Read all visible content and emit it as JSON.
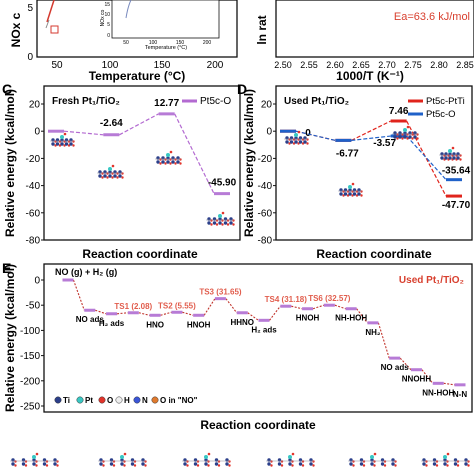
{
  "colors": {
    "dash_purple": "#b36ad1",
    "level_purple": "#b77bd6",
    "red": "#e0241c",
    "blue": "#1f61c9",
    "title_red": "#d8402f",
    "ts_label": "#e15d4d",
    "dark_red_dash": "#c1342c",
    "atom_ti": "#2b3f8a",
    "atom_pt": "#39c8c4",
    "atom_o": "#e2342b",
    "atom_h": "#eeeeee",
    "atom_n": "#3a55d8",
    "atom_no": "#e07a2e"
  },
  "panel_a": {
    "ylabel": "NOx c",
    "xlabel": "Temperature (°C)",
    "x_ticks": [
      "50",
      "100",
      "150",
      "200"
    ],
    "y_ticks": [
      "5",
      "0"
    ],
    "inset_ylabel": "NOx co",
    "inset_xlabel": "Temperature (°C)",
    "inset_x_ticks": [
      "50",
      "100",
      "150",
      "200"
    ],
    "inset_y_ticks": [
      "15",
      "10",
      "5",
      "0"
    ]
  },
  "panel_b": {
    "ylabel": "ln rat",
    "xlabel": "1000/T (K⁻¹)",
    "x_ticks": [
      "2.50",
      "2.55",
      "2.60",
      "2.65",
      "2.70",
      "2.75",
      "2.80",
      "2.85"
    ],
    "annotation": "Ea=63.6 kJ/mol"
  },
  "chart_data": [
    {
      "panel": "C",
      "type": "line",
      "title": "Fresh Pt₁/TiO₂",
      "xlabel": "Reaction coordinate",
      "ylabel": "Relative energy (kcal/mol)",
      "ylim": [
        -80,
        20
      ],
      "y_ticks": [
        "20",
        "0",
        "-20",
        "-40",
        "-60",
        "-80"
      ],
      "legend": "top-right",
      "series": [
        {
          "name": "Pt5c-O",
          "values": [
            0,
            -2.64,
            12.77,
            -45.9
          ],
          "labels": [
            "",
            "-2.64",
            "12.77",
            "-45.90"
          ]
        }
      ]
    },
    {
      "panel": "D",
      "type": "line",
      "title": "Used Pt₁/TiO₂",
      "xlabel": "Reaction coordinate",
      "ylabel": "Relative energy (kcal/mol)",
      "ylim": [
        -80,
        20
      ],
      "y_ticks": [
        "20",
        "0",
        "-20",
        "-40",
        "-60",
        "-80"
      ],
      "legend": "top-right",
      "series": [
        {
          "name": "Pt5c-PtTi",
          "values": [
            0,
            -6.77,
            7.46,
            -47.7
          ],
          "labels": [
            "0",
            "",
            "7.46",
            "-47.70"
          ]
        },
        {
          "name": "Pt5c-O",
          "values": [
            0,
            -6.77,
            -3.57,
            -35.64
          ],
          "labels": [
            "",
            "-6.77",
            "-3.57",
            "-35.64"
          ]
        }
      ]
    },
    {
      "panel": "E",
      "type": "line",
      "title": "Used Pt₁/TiO₂",
      "start_label": "NO (g) + H₂ (g)",
      "xlabel": "Reaction coordinate",
      "ylabel": "Relative energy (kcal/mol)",
      "ylim": [
        -250,
        0
      ],
      "y_ticks": [
        "0",
        "-50",
        "-100",
        "-150",
        "-200",
        "-250"
      ],
      "steps": [
        {
          "label": "",
          "value": 0
        },
        {
          "label": "NO ads",
          "value": -60
        },
        {
          "label": "H₂ ads",
          "value": -67
        },
        {
          "label": "TS1 (2.08)",
          "value": -65
        },
        {
          "label": "HNO",
          "value": -70
        },
        {
          "label": "TS2 (5.55)",
          "value": -64
        },
        {
          "label": "HNOH",
          "value": -70
        },
        {
          "label": "TS3 (31.65)",
          "value": -37
        },
        {
          "label": "HHNO",
          "value": -65
        },
        {
          "label": "H₂ ads",
          "value": -80
        },
        {
          "label": "TS4 (31.18)",
          "value": -52
        },
        {
          "label": "HNOH",
          "value": -57
        },
        {
          "label": "TS6 (32.57)",
          "value": -50
        },
        {
          "label": "NH-HOH",
          "value": -57
        },
        {
          "label": "NH₂",
          "value": -85
        },
        {
          "label": "NO ads",
          "value": -155
        },
        {
          "label": "NNOHH",
          "value": -178
        },
        {
          "label": "NN-HOH",
          "value": -205
        },
        {
          "label": "N-N",
          "value": -208
        }
      ],
      "legend_atoms": [
        "Ti",
        "Pt",
        "O",
        "H",
        "N",
        "O in \"NO\""
      ]
    }
  ],
  "panel_letters": {
    "c": "C",
    "d": "D",
    "e": "E"
  }
}
